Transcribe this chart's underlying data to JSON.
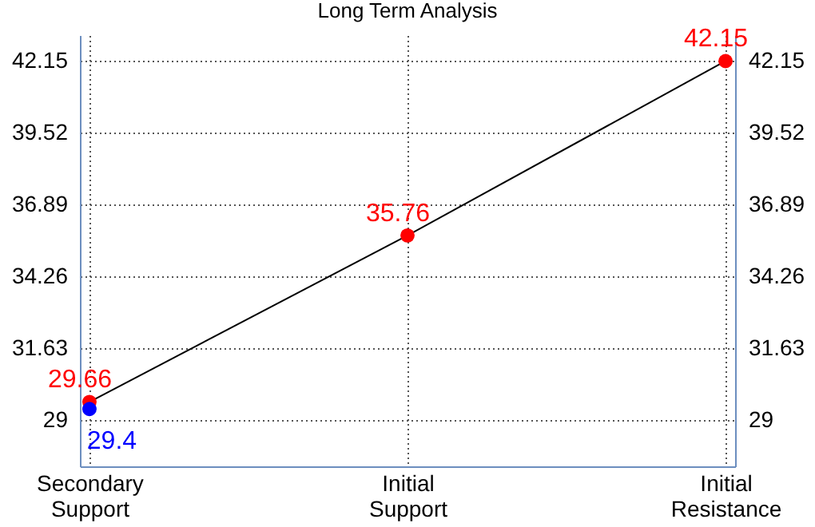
{
  "chart_data": {
    "type": "line",
    "title": "Long Term Analysis",
    "categories": [
      "Secondary Support",
      "Initial Support",
      "Initial Resistance"
    ],
    "series": [
      {
        "color": "#000000",
        "values": [
          29.66,
          35.76,
          42.15
        ],
        "marker": "none"
      },
      {
        "type": "scatter",
        "color": "#ff0000",
        "values": [
          29.66,
          35.76,
          42.15
        ],
        "marker": "circle",
        "data_labels": true
      },
      {
        "type": "scatter",
        "color": "#0000ff",
        "values": [
          29.4,
          null,
          null
        ],
        "marker": "circle",
        "data_labels": true
      }
    ],
    "ylim": [
      27.3,
      43.1
    ],
    "yticks": [
      29,
      31.63,
      34.26,
      36.89,
      39.52,
      42.15
    ],
    "y2lim": [
      27.3,
      43.1
    ],
    "y2ticks": [
      29,
      31.63,
      34.26,
      36.89,
      39.52,
      42.15
    ],
    "grid": true
  }
}
